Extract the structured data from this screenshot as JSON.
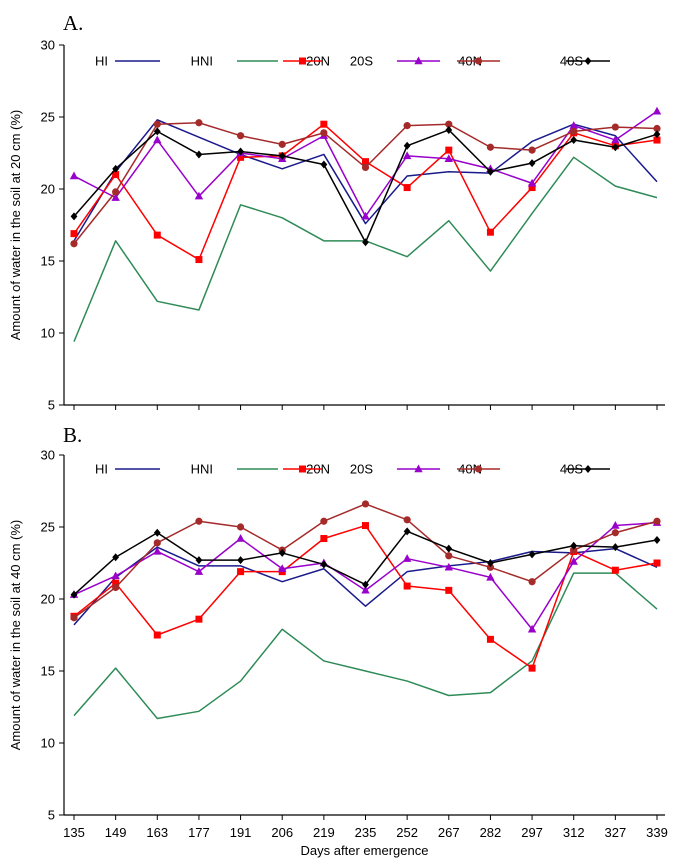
{
  "x_axis_label": "Days after emergence",
  "chart_data": [
    {
      "type": "line",
      "panel_label": "A.",
      "title": "",
      "xlabel": "",
      "ylabel": "Amount of water in the soil at 20 cm (%)",
      "ylim": [
        5,
        30
      ],
      "yticks": [
        5,
        10,
        15,
        20,
        25,
        30
      ],
      "x": [
        135,
        149,
        163,
        177,
        191,
        206,
        219,
        235,
        252,
        267,
        282,
        297,
        312,
        327,
        339
      ],
      "legend_position": "top",
      "grid": false,
      "series": [
        {
          "name": "HI",
          "color": "#1a1a8c",
          "marker": "none",
          "values": [
            16.4,
            21.2,
            24.8,
            23.6,
            22.4,
            21.4,
            22.4,
            17.6,
            20.9,
            21.2,
            21.1,
            23.3,
            24.5,
            23.7,
            20.5
          ]
        },
        {
          "name": "HNI",
          "color": "#2e8b57",
          "marker": "none",
          "values": [
            9.4,
            16.4,
            12.2,
            11.6,
            18.9,
            18.0,
            16.4,
            16.4,
            15.3,
            17.8,
            14.3,
            18.3,
            22.2,
            20.2,
            19.4
          ]
        },
        {
          "name": "20N",
          "color": "#ff0000",
          "marker": "square",
          "values": [
            16.9,
            21.0,
            16.8,
            15.1,
            22.2,
            22.3,
            24.5,
            21.9,
            20.1,
            22.7,
            17.0,
            20.1,
            23.9,
            23.0,
            23.4
          ]
        },
        {
          "name": "20S",
          "color": "#9900cc",
          "marker": "triangle",
          "values": [
            20.9,
            19.4,
            23.4,
            19.5,
            22.5,
            22.1,
            23.7,
            18.1,
            22.3,
            22.1,
            21.4,
            20.4,
            24.4,
            23.4,
            25.4
          ]
        },
        {
          "name": "40N",
          "color": "#a52a2a",
          "marker": "circle",
          "values": [
            16.2,
            19.8,
            24.5,
            24.6,
            23.7,
            23.1,
            23.9,
            21.5,
            24.4,
            24.5,
            22.9,
            22.7,
            24.0,
            24.3,
            24.2
          ]
        },
        {
          "name": "40S",
          "color": "#000000",
          "marker": "diamond",
          "values": [
            18.1,
            21.4,
            24.0,
            22.4,
            22.6,
            22.3,
            21.7,
            16.3,
            23.0,
            24.1,
            21.2,
            21.8,
            23.4,
            22.9,
            23.8
          ]
        }
      ]
    },
    {
      "type": "line",
      "panel_label": "B.",
      "title": "",
      "xlabel": "Days after emergence",
      "ylabel": "Amount of water in the soil at 40 cm (%)",
      "ylim": [
        5,
        30
      ],
      "yticks": [
        5,
        10,
        15,
        20,
        25,
        30
      ],
      "x": [
        135,
        149,
        163,
        177,
        191,
        206,
        219,
        235,
        252,
        267,
        282,
        297,
        312,
        327,
        339
      ],
      "legend_position": "top",
      "grid": false,
      "series": [
        {
          "name": "HI",
          "color": "#1a1a8c",
          "marker": "none",
          "values": [
            18.2,
            21.5,
            23.6,
            22.3,
            22.3,
            21.2,
            22.1,
            19.5,
            21.9,
            22.3,
            22.6,
            23.3,
            23.2,
            23.5,
            22.2
          ]
        },
        {
          "name": "HNI",
          "color": "#2e8b57",
          "marker": "none",
          "values": [
            11.9,
            15.2,
            11.7,
            12.2,
            14.3,
            17.9,
            15.7,
            15.0,
            14.3,
            13.3,
            13.5,
            15.7,
            21.8,
            21.8,
            19.3
          ]
        },
        {
          "name": "20N",
          "color": "#ff0000",
          "marker": "square",
          "values": [
            18.8,
            21.1,
            17.5,
            18.6,
            21.9,
            21.9,
            24.2,
            25.1,
            20.9,
            20.6,
            17.2,
            15.2,
            23.3,
            22.0,
            22.5
          ]
        },
        {
          "name": "20S",
          "color": "#9900cc",
          "marker": "triangle",
          "values": [
            20.3,
            21.6,
            23.3,
            21.9,
            24.2,
            22.1,
            22.5,
            20.6,
            22.8,
            22.2,
            21.5,
            17.9,
            22.6,
            25.1,
            25.3
          ]
        },
        {
          "name": "40N",
          "color": "#a52a2a",
          "marker": "circle",
          "values": [
            18.7,
            20.8,
            23.9,
            25.4,
            25.0,
            23.4,
            25.4,
            26.6,
            25.5,
            23.0,
            22.2,
            21.2,
            23.4,
            24.6,
            25.4
          ]
        },
        {
          "name": "40S",
          "color": "#000000",
          "marker": "diamond",
          "values": [
            20.3,
            22.9,
            24.6,
            22.7,
            22.7,
            23.2,
            22.4,
            21.0,
            24.7,
            23.5,
            22.5,
            23.1,
            23.7,
            23.6,
            24.1
          ]
        }
      ]
    }
  ]
}
